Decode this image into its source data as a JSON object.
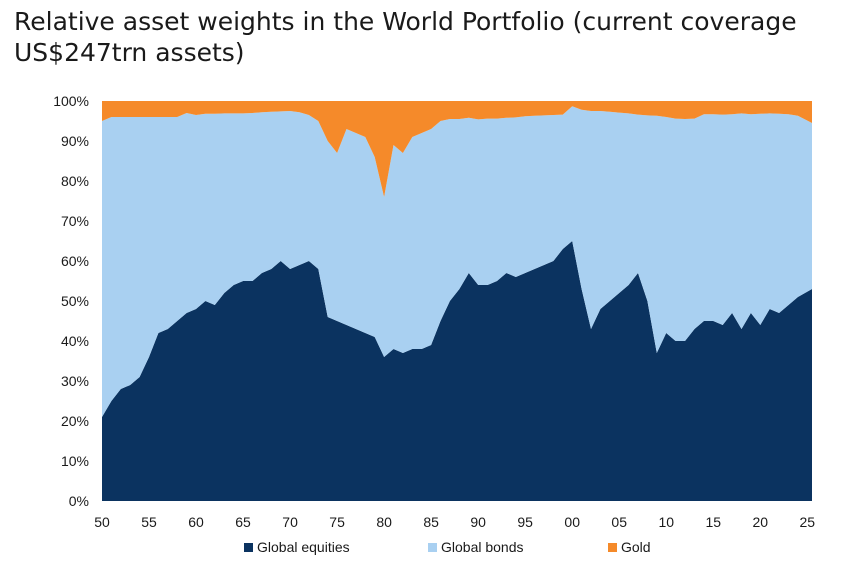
{
  "chart_data": {
    "type": "area",
    "stacked": true,
    "normalized_percent": true,
    "title": "Relative asset weights in the World Portfolio (current coverage US$247trn assets)",
    "xlabel": "",
    "ylabel": "",
    "ylim": [
      0,
      100
    ],
    "yticks": [
      "0%",
      "10%",
      "20%",
      "30%",
      "40%",
      "50%",
      "60%",
      "70%",
      "80%",
      "90%",
      "100%"
    ],
    "xlim": [
      1950,
      2025.5
    ],
    "xticks": [
      {
        "year": 1950,
        "label": "50"
      },
      {
        "year": 1955,
        "label": "55"
      },
      {
        "year": 1960,
        "label": "60"
      },
      {
        "year": 1965,
        "label": "65"
      },
      {
        "year": 1970,
        "label": "70"
      },
      {
        "year": 1975,
        "label": "75"
      },
      {
        "year": 1980,
        "label": "80"
      },
      {
        "year": 1985,
        "label": "85"
      },
      {
        "year": 1990,
        "label": "90"
      },
      {
        "year": 1995,
        "label": "95"
      },
      {
        "year": 2000,
        "label": "00"
      },
      {
        "year": 2005,
        "label": "05"
      },
      {
        "year": 2010,
        "label": "10"
      },
      {
        "year": 2015,
        "label": "15"
      },
      {
        "year": 2020,
        "label": "20"
      },
      {
        "year": 2025,
        "label": "25"
      }
    ],
    "legend_position": "bottom",
    "grid": false,
    "colors": {
      "equities": "#0b3360",
      "bonds": "#a9d0f1",
      "gold": "#f58a2a"
    },
    "x": [
      1950,
      1951,
      1952,
      1953,
      1954,
      1955,
      1956,
      1957,
      1958,
      1959,
      1960,
      1961,
      1962,
      1963,
      1964,
      1965,
      1966,
      1967,
      1968,
      1969,
      1970,
      1971,
      1972,
      1973,
      1974,
      1975,
      1976,
      1977,
      1978,
      1979,
      1980,
      1981,
      1982,
      1983,
      1984,
      1985,
      1986,
      1987,
      1988,
      1989,
      1990,
      1991,
      1992,
      1993,
      1994,
      1995,
      1996,
      1997,
      1998,
      1999,
      2000,
      2001,
      2002,
      2003,
      2004,
      2005,
      2006,
      2007,
      2008,
      2009,
      2010,
      2011,
      2012,
      2013,
      2014,
      2015,
      2016,
      2017,
      2018,
      2019,
      2020,
      2021,
      2022,
      2023,
      2024,
      2025.5
    ],
    "series": [
      {
        "name": "Global equities",
        "key": "equities",
        "values": [
          21,
          25,
          28,
          29,
          31,
          36,
          42,
          43,
          45,
          47,
          48,
          50,
          49,
          52,
          54,
          55,
          55,
          57,
          58,
          60,
          58,
          59,
          60,
          58,
          46,
          45,
          44,
          43,
          42,
          41,
          36,
          38,
          37,
          38,
          38,
          39,
          45,
          50,
          53,
          57,
          54,
          54,
          55,
          57,
          56,
          57,
          58,
          59,
          60,
          63,
          65,
          53,
          43,
          48,
          50,
          52,
          54,
          57,
          50,
          37,
          42,
          40,
          40,
          43,
          45,
          45,
          44,
          47,
          43,
          47,
          44,
          48,
          47,
          49,
          51,
          53
        ]
      },
      {
        "name": "Global bonds",
        "key": "bonds",
        "values": [
          74,
          71,
          68,
          67,
          65,
          60,
          54,
          53,
          51,
          50,
          48.5,
          46.8,
          47.8,
          44.9,
          42.9,
          41.9,
          42,
          40.2,
          39.3,
          37.4,
          39.5,
          38.2,
          36.5,
          37,
          44,
          42,
          49,
          49,
          49,
          45,
          40,
          51,
          50,
          53,
          54,
          54,
          50,
          45.5,
          42.5,
          38.8,
          41.4,
          41.6,
          40.6,
          38.8,
          39.9,
          39.2,
          38.3,
          37.4,
          36.5,
          33.6,
          33.7,
          44.8,
          54.5,
          49.5,
          47.3,
          45.1,
          42.9,
          39.6,
          46.4,
          59.3,
          54,
          55.6,
          55.5,
          52.6,
          51.7,
          51.7,
          52.6,
          49.7,
          53.9,
          49.7,
          52.8,
          48.9,
          49.8,
          47.7,
          45.3,
          41.5
        ]
      },
      {
        "name": "Gold",
        "key": "gold",
        "values": [
          5,
          4,
          4,
          4,
          4,
          4,
          4,
          4,
          4,
          3,
          3.5,
          3.2,
          3.2,
          3.1,
          3.1,
          3.1,
          3,
          2.8,
          2.7,
          2.6,
          2.5,
          2.8,
          3.5,
          5,
          10,
          13,
          7,
          8,
          9,
          14,
          24,
          11,
          13,
          9,
          8,
          7,
          5,
          4.5,
          4.5,
          4.2,
          4.6,
          4.4,
          4.4,
          4.2,
          4.1,
          3.8,
          3.7,
          3.6,
          3.5,
          3.4,
          1.3,
          2.2,
          2.5,
          2.5,
          2.7,
          2.9,
          3.1,
          3.4,
          3.6,
          3.7,
          4,
          4.4,
          4.5,
          4.4,
          3.3,
          3.3,
          3.4,
          3.3,
          3.1,
          3.3,
          3.2,
          3.1,
          3.2,
          3.3,
          3.7,
          5.5
        ]
      }
    ]
  }
}
